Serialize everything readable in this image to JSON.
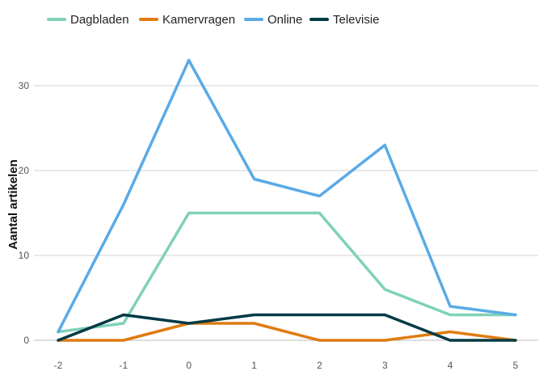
{
  "chart_data": {
    "type": "line",
    "x": [
      -2,
      -1,
      0,
      1,
      2,
      3,
      4,
      5
    ],
    "x_tick_labels": [
      "-2",
      "-1",
      "0",
      "1",
      "2",
      "3",
      "4",
      "5"
    ],
    "y_ticks": [
      0,
      10,
      20,
      30
    ],
    "y_tick_labels": [
      "0",
      "10",
      "20",
      "30"
    ],
    "ylim": [
      0,
      33
    ],
    "xlabel": "",
    "ylabel": "Aantal artikelen",
    "grid": true,
    "legend_position": "top-left",
    "series": [
      {
        "name": "Dagbladen",
        "color": "#7fd1b9",
        "values": [
          1,
          2,
          15,
          15,
          15,
          6,
          3,
          3
        ]
      },
      {
        "name": "Kamervragen",
        "color": "#e07b10",
        "values": [
          0,
          0,
          2,
          2,
          0,
          0,
          1,
          0
        ]
      },
      {
        "name": "Online",
        "color": "#5aaae6",
        "values": [
          1,
          16,
          33,
          19,
          17,
          23,
          4,
          3
        ]
      },
      {
        "name": "Televisie",
        "color": "#003a45",
        "values": [
          0,
          3,
          2,
          3,
          3,
          3,
          0,
          0
        ]
      }
    ]
  }
}
